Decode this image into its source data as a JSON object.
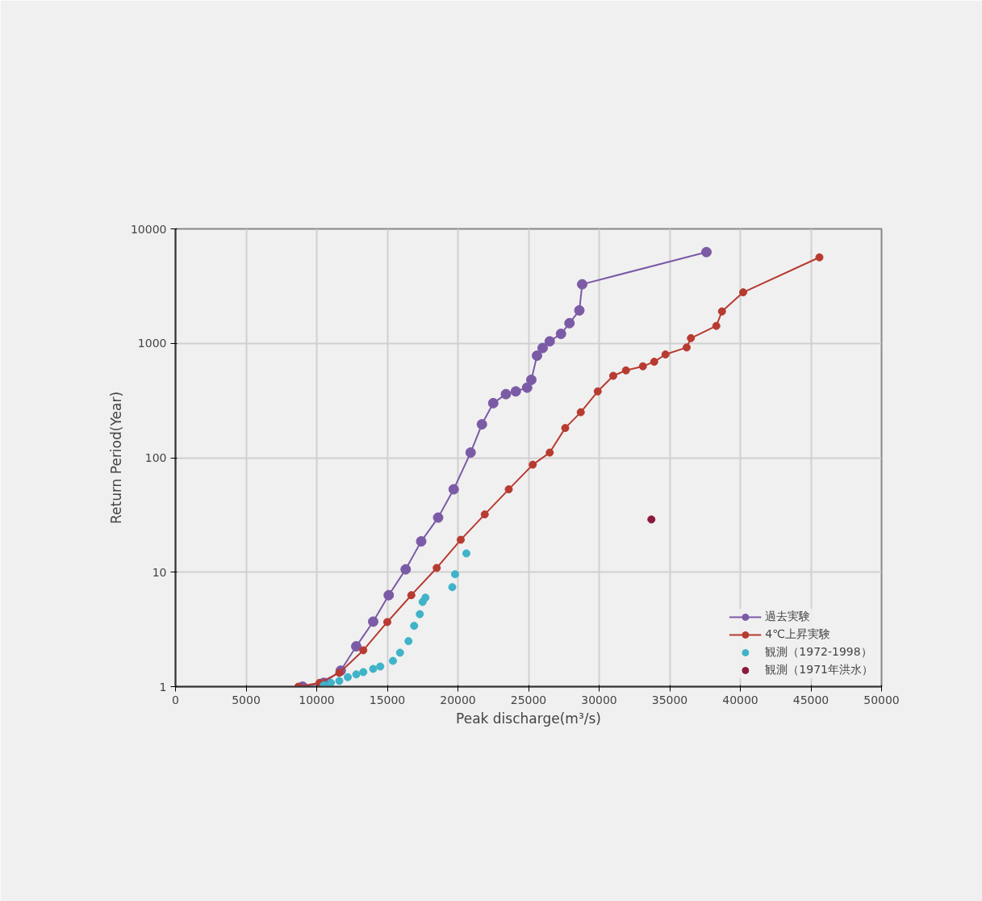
{
  "chart_data": {
    "type": "line",
    "xlabel": "Peak discharge(m³/s)",
    "ylabel": "Return Period(Year)",
    "log": "y",
    "grid": true,
    "legend": "bottom right",
    "marker": "circle",
    "line_style": "solid",
    "xlim": [
      0,
      50000
    ],
    "xticks": [
      0,
      5000,
      10000,
      15000,
      20000,
      25000,
      30000,
      35000,
      40000,
      45000,
      50000
    ],
    "ylim": [
      1,
      10000
    ],
    "yticks": [
      1,
      10,
      100,
      1000,
      10000
    ],
    "series": [
      {
        "name": "過去実験",
        "color": "#7b5aa6",
        "x": [
          9000,
          10500,
          11700,
          12800,
          14000,
          15100,
          16300,
          17400,
          18600,
          19700,
          20900,
          21700,
          22500,
          23400,
          24100,
          24900,
          25200,
          25600,
          26000,
          26500,
          27300,
          27900,
          28600,
          28800,
          37600
        ],
        "values": [
          1,
          1.08,
          1.38,
          2.25,
          3.7,
          6.3,
          10.6,
          18.6,
          30,
          53,
          111,
          196,
          300,
          360,
          380,
          410,
          480,
          780,
          910,
          1040,
          1210,
          1500,
          1940,
          3280,
          6270
        ]
      },
      {
        "name": "4℃上昇実験",
        "color": "#b83a30",
        "x": [
          8700,
          10200,
          11600,
          13300,
          15000,
          16700,
          18500,
          20200,
          21900,
          23600,
          25300,
          26500,
          27600,
          28700,
          29900,
          31000,
          31900,
          33100,
          33900,
          34700,
          36200,
          36500,
          38300,
          38700,
          40200,
          45600
        ],
        "values": [
          1,
          1.08,
          1.32,
          2.08,
          3.67,
          6.3,
          10.9,
          19.2,
          32,
          53,
          87,
          111,
          182,
          250,
          380,
          520,
          580,
          630,
          690,
          800,
          920,
          1110,
          1420,
          1900,
          2790,
          5640
        ]
      },
      {
        "name": "観測（1972-1998）",
        "type": "scatter",
        "color": "#3fb3c8",
        "x": [
          10500,
          11000,
          11600,
          12200,
          12800,
          13300,
          14000,
          14500,
          15400,
          15900,
          16500,
          16900,
          17300,
          17500,
          17700,
          19600,
          19800,
          20600
        ],
        "values": [
          1.03,
          1.08,
          1.12,
          1.21,
          1.28,
          1.34,
          1.43,
          1.5,
          1.68,
          1.98,
          2.5,
          3.4,
          4.3,
          5.5,
          6,
          7.4,
          9.6,
          14.6
        ]
      },
      {
        "name": "観測（1971年洪水）",
        "type": "scatter",
        "color": "#8b1a3a",
        "x": [
          33700
        ],
        "values": [
          28.9
        ]
      }
    ]
  }
}
